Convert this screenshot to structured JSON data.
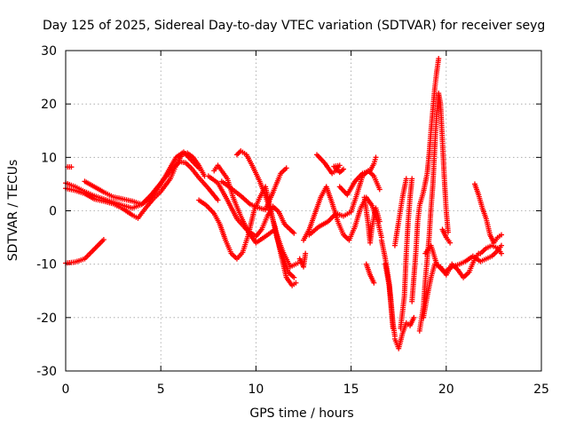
{
  "chart_data": {
    "type": "scatter",
    "title": "Day 125 of 2025, Sidereal Day-to-day VTEC variation (SDTVAR) for receiver seyg",
    "xlabel": "GPS time / hours",
    "ylabel": "SDTVAR / TECUs",
    "xlim": [
      0,
      25
    ],
    "ylim": [
      -30,
      30
    ],
    "x_ticks": [
      0,
      5,
      10,
      15,
      20,
      25
    ],
    "y_ticks": [
      -30,
      -20,
      -10,
      0,
      10,
      20,
      30
    ],
    "x_tick_labels": [
      "0",
      "5",
      "10",
      "15",
      "20",
      "25"
    ],
    "y_tick_labels": [
      "-30",
      "-20",
      "-10",
      "0",
      "10",
      "20",
      "30"
    ],
    "grid": true,
    "marker": "+",
    "color": "#ff0000",
    "series": [
      {
        "name": "s1",
        "points": [
          [
            0.0,
            5.2
          ],
          [
            0.5,
            4.5
          ],
          [
            1.0,
            3.6
          ],
          [
            1.5,
            2.8
          ],
          [
            2.0,
            2.2
          ],
          [
            2.5,
            1.6
          ],
          [
            3.0,
            1.0
          ],
          [
            3.5,
            0.5
          ],
          [
            4.0,
            1.2
          ],
          [
            4.5,
            3.0
          ],
          [
            5.0,
            5.2
          ],
          [
            5.5,
            7.4
          ],
          [
            6.0,
            9.2
          ],
          [
            6.3,
            9.0
          ],
          [
            6.6,
            8.0
          ],
          [
            7.0,
            6.2
          ],
          [
            7.5,
            4.2
          ],
          [
            8.0,
            2.0
          ]
        ]
      },
      {
        "name": "s2",
        "points": [
          [
            0.0,
            4.2
          ],
          [
            0.5,
            3.8
          ],
          [
            1.0,
            3.2
          ],
          [
            1.5,
            2.2
          ],
          [
            2.0,
            1.8
          ],
          [
            2.5,
            1.3
          ],
          [
            3.0,
            0.4
          ],
          [
            3.5,
            -0.8
          ],
          [
            3.8,
            -1.4
          ],
          [
            4.2,
            0.5
          ],
          [
            4.6,
            2.2
          ],
          [
            5.0,
            3.6
          ],
          [
            5.5,
            6.0
          ],
          [
            5.8,
            8.5
          ],
          [
            6.1,
            10.5
          ],
          [
            6.4,
            10.8
          ],
          [
            6.7,
            10.0
          ],
          [
            7.0,
            8.5
          ],
          [
            7.3,
            6.5
          ]
        ]
      },
      {
        "name": "s3",
        "points": [
          [
            0.0,
            -9.8
          ],
          [
            0.5,
            -9.6
          ],
          [
            1.0,
            -9.0
          ],
          [
            1.5,
            -7.2
          ],
          [
            2.0,
            -5.4
          ]
        ]
      },
      {
        "name": "s4",
        "points": [
          [
            1.0,
            5.5
          ],
          [
            1.5,
            4.5
          ],
          [
            2.0,
            3.5
          ],
          [
            2.5,
            2.6
          ],
          [
            3.0,
            2.2
          ],
          [
            3.5,
            1.8
          ],
          [
            4.0,
            1.2
          ],
          [
            4.5,
            2.5
          ],
          [
            5.0,
            5.0
          ],
          [
            5.4,
            7.5
          ],
          [
            5.8,
            10.0
          ],
          [
            6.2,
            11.0
          ],
          [
            6.6,
            9.5
          ],
          [
            7.0,
            8.0
          ]
        ]
      },
      {
        "name": "s5",
        "points": [
          [
            0.1,
            8.2
          ],
          [
            0.3,
            8.2
          ]
        ]
      },
      {
        "name": "s6",
        "points": [
          [
            7.5,
            6.5
          ],
          [
            8.0,
            5.2
          ],
          [
            8.5,
            2.0
          ],
          [
            9.0,
            -1.5
          ],
          [
            9.5,
            -3.5
          ],
          [
            10.0,
            -4.8
          ],
          [
            10.3,
            -3.5
          ],
          [
            10.6,
            -1.0
          ],
          [
            10.9,
            0.8
          ],
          [
            11.2,
            -0.2
          ],
          [
            11.5,
            -2.5
          ],
          [
            12.0,
            -4.2
          ]
        ]
      },
      {
        "name": "s7",
        "points": [
          [
            7.8,
            7.5
          ],
          [
            8.0,
            8.5
          ],
          [
            8.5,
            6.0
          ],
          [
            8.8,
            2.5
          ],
          [
            9.2,
            -1.0
          ],
          [
            9.6,
            -4.0
          ],
          [
            10.0,
            -6.0
          ],
          [
            10.5,
            -4.8
          ],
          [
            11.0,
            -3.5
          ],
          [
            11.4,
            -7.5
          ],
          [
            11.8,
            -10.5
          ],
          [
            12.2,
            -9.8
          ]
        ]
      },
      {
        "name": "s8",
        "points": [
          [
            7.0,
            2.0
          ],
          [
            7.4,
            1.0
          ],
          [
            7.8,
            -0.5
          ],
          [
            8.1,
            -2.5
          ],
          [
            8.4,
            -5.5
          ],
          [
            8.7,
            -8.0
          ],
          [
            9.0,
            -9.0
          ],
          [
            9.3,
            -7.8
          ],
          [
            9.6,
            -4.5
          ],
          [
            9.9,
            0.0
          ],
          [
            10.2,
            2.5
          ],
          [
            10.5,
            4.5
          ],
          [
            10.8,
            -0.2
          ],
          [
            11.1,
            -5.0
          ],
          [
            11.4,
            -8.5
          ],
          [
            11.7,
            -11.5
          ],
          [
            12.0,
            -12.5
          ]
        ]
      },
      {
        "name": "s9",
        "points": [
          [
            9.0,
            10.5
          ],
          [
            9.2,
            11.2
          ],
          [
            9.5,
            10.5
          ],
          [
            9.8,
            8.5
          ],
          [
            10.2,
            5.5
          ],
          [
            10.6,
            1.8
          ],
          [
            11.0,
            -3.0
          ],
          [
            11.3,
            -8.0
          ],
          [
            11.6,
            -12.5
          ],
          [
            11.9,
            -14.0
          ],
          [
            12.1,
            -13.5
          ]
        ]
      },
      {
        "name": "s10",
        "points": [
          [
            8.2,
            5.5
          ],
          [
            8.7,
            4.2
          ],
          [
            9.2,
            2.8
          ],
          [
            9.7,
            1.2
          ],
          [
            10.2,
            0.5
          ],
          [
            10.5,
            0.2
          ],
          [
            10.9,
            3.5
          ],
          [
            11.3,
            7.0
          ],
          [
            11.6,
            8.0
          ]
        ]
      },
      {
        "name": "s11",
        "points": [
          [
            12.3,
            -9.0
          ],
          [
            12.5,
            -10.5
          ],
          [
            12.6,
            -8.0
          ]
        ]
      },
      {
        "name": "s12",
        "points": [
          [
            12.5,
            -5.5
          ],
          [
            12.8,
            -3.5
          ],
          [
            13.1,
            -0.5
          ],
          [
            13.4,
            2.5
          ],
          [
            13.7,
            4.5
          ],
          [
            14.0,
            1.5
          ],
          [
            14.3,
            -2.0
          ],
          [
            14.6,
            -4.5
          ],
          [
            14.9,
            -5.5
          ],
          [
            15.2,
            -3.0
          ],
          [
            15.5,
            0.5
          ],
          [
            15.8,
            2.5
          ],
          [
            16.1,
            1.0
          ],
          [
            16.4,
            -2.0
          ],
          [
            16.6,
            -5.0
          ]
        ]
      },
      {
        "name": "s13",
        "points": [
          [
            12.8,
            -4.5
          ],
          [
            13.3,
            -3.0
          ],
          [
            13.8,
            -2.0
          ],
          [
            14.2,
            -0.5
          ],
          [
            14.6,
            -1.0
          ],
          [
            15.0,
            -0.2
          ],
          [
            15.3,
            3.0
          ],
          [
            15.6,
            6.5
          ],
          [
            15.9,
            7.5
          ],
          [
            16.2,
            6.5
          ],
          [
            16.5,
            4.0
          ]
        ]
      },
      {
        "name": "s14",
        "points": [
          [
            13.2,
            10.5
          ],
          [
            13.6,
            9.0
          ],
          [
            14.0,
            7.0
          ],
          [
            14.2,
            7.5
          ],
          [
            14.4,
            8.5
          ],
          [
            14.1,
            8.3
          ],
          [
            14.4,
            7.2
          ],
          [
            14.6,
            7.8
          ]
        ]
      },
      {
        "name": "s15",
        "points": [
          [
            14.4,
            4.5
          ],
          [
            14.8,
            3.0
          ],
          [
            15.2,
            5.5
          ],
          [
            15.6,
            7.0
          ],
          [
            16.0,
            7.5
          ],
          [
            16.2,
            8.8
          ],
          [
            16.3,
            10.0
          ]
        ]
      },
      {
        "name": "s16",
        "points": [
          [
            15.7,
            2.5
          ],
          [
            15.9,
            -2.5
          ],
          [
            16.0,
            -6.0
          ],
          [
            16.1,
            -3.0
          ],
          [
            16.3,
            0.5
          ],
          [
            16.5,
            -2.0
          ]
        ]
      },
      {
        "name": "s17",
        "points": [
          [
            15.8,
            -10.0
          ],
          [
            16.0,
            -12.0
          ],
          [
            16.2,
            -13.5
          ]
        ]
      },
      {
        "name": "s18",
        "points": [
          [
            16.6,
            -5.5
          ],
          [
            16.8,
            -9.0
          ],
          [
            17.0,
            -13.5
          ],
          [
            17.1,
            -17.0
          ],
          [
            17.2,
            -21.0
          ],
          [
            17.3,
            -23.5
          ]
        ]
      },
      {
        "name": "s19",
        "points": [
          [
            16.8,
            -10.0
          ],
          [
            17.0,
            -14.0
          ],
          [
            17.1,
            -18.0
          ],
          [
            17.2,
            -22.0
          ]
        ]
      },
      {
        "name": "s20",
        "points": [
          [
            17.3,
            -24.0
          ],
          [
            17.5,
            -25.8
          ],
          [
            17.7,
            -23.0
          ],
          [
            17.9,
            -21.0
          ],
          [
            18.1,
            -21.5
          ],
          [
            18.3,
            -20.0
          ]
        ]
      },
      {
        "name": "s21",
        "points": [
          [
            17.6,
            -22.0
          ],
          [
            17.8,
            -16.0
          ],
          [
            17.9,
            -8.0
          ],
          [
            18.0,
            -2.0
          ],
          [
            18.1,
            2.5
          ],
          [
            18.2,
            6.0
          ]
        ]
      },
      {
        "name": "s22",
        "points": [
          [
            17.3,
            -6.5
          ],
          [
            17.5,
            -2.0
          ],
          [
            17.7,
            2.5
          ],
          [
            17.9,
            6.0
          ]
        ]
      },
      {
        "name": "s23",
        "points": [
          [
            18.2,
            -17.0
          ],
          [
            18.4,
            -8.0
          ],
          [
            18.5,
            -2.0
          ],
          [
            18.6,
            1.0
          ],
          [
            18.8,
            3.5
          ],
          [
            19.0,
            7.0
          ],
          [
            19.1,
            10.5
          ],
          [
            19.2,
            15.0
          ],
          [
            19.3,
            19.0
          ],
          [
            19.4,
            23.0
          ],
          [
            19.5,
            26.0
          ],
          [
            19.6,
            28.5
          ]
        ]
      },
      {
        "name": "s24",
        "points": [
          [
            18.6,
            -22.5
          ],
          [
            18.8,
            -18.0
          ],
          [
            18.9,
            -13.0
          ],
          [
            19.0,
            -9.0
          ],
          [
            19.1,
            -5.0
          ],
          [
            19.2,
            0.5
          ],
          [
            19.3,
            5.0
          ],
          [
            19.4,
            12.0
          ],
          [
            19.5,
            18.0
          ],
          [
            19.6,
            22.0
          ],
          [
            19.7,
            20.0
          ],
          [
            19.8,
            13.0
          ],
          [
            19.9,
            6.0
          ],
          [
            20.0,
            0.0
          ],
          [
            20.1,
            -4.0
          ]
        ]
      },
      {
        "name": "s25",
        "points": [
          [
            18.8,
            -20.0
          ],
          [
            19.0,
            -16.0
          ],
          [
            19.2,
            -12.5
          ],
          [
            19.4,
            -10.0
          ],
          [
            19.7,
            -10.5
          ],
          [
            20.0,
            -12.0
          ],
          [
            20.3,
            -10.0
          ],
          [
            20.6,
            -11.0
          ],
          [
            20.9,
            -12.5
          ],
          [
            21.2,
            -11.5
          ],
          [
            21.5,
            -9.0
          ],
          [
            21.7,
            -8.0
          ]
        ]
      },
      {
        "name": "s26",
        "points": [
          [
            18.9,
            -8.0
          ],
          [
            19.2,
            -6.5
          ],
          [
            19.5,
            -10.0
          ],
          [
            19.9,
            -11.5
          ],
          [
            20.3,
            -10.5
          ],
          [
            20.7,
            -10.0
          ],
          [
            21.0,
            -9.5
          ],
          [
            21.4,
            -8.5
          ],
          [
            21.8,
            -9.5
          ],
          [
            22.1,
            -9.0
          ],
          [
            22.4,
            -8.5
          ],
          [
            22.7,
            -7.5
          ],
          [
            22.9,
            -6.5
          ]
        ]
      },
      {
        "name": "s27",
        "points": [
          [
            21.5,
            5.0
          ],
          [
            21.7,
            3.0
          ],
          [
            21.9,
            0.5
          ],
          [
            22.1,
            -1.5
          ],
          [
            22.3,
            -4.5
          ],
          [
            22.5,
            -6.0
          ],
          [
            22.7,
            -5.0
          ],
          [
            22.9,
            -4.5
          ]
        ]
      },
      {
        "name": "s28",
        "points": [
          [
            21.8,
            -8.0
          ],
          [
            22.1,
            -7.0
          ],
          [
            22.4,
            -6.5
          ],
          [
            22.7,
            -7.0
          ],
          [
            22.9,
            -8.0
          ]
        ]
      },
      {
        "name": "s29",
        "points": [
          [
            19.8,
            -3.5
          ],
          [
            20.0,
            -5.0
          ],
          [
            20.2,
            -6.0
          ]
        ]
      }
    ]
  }
}
